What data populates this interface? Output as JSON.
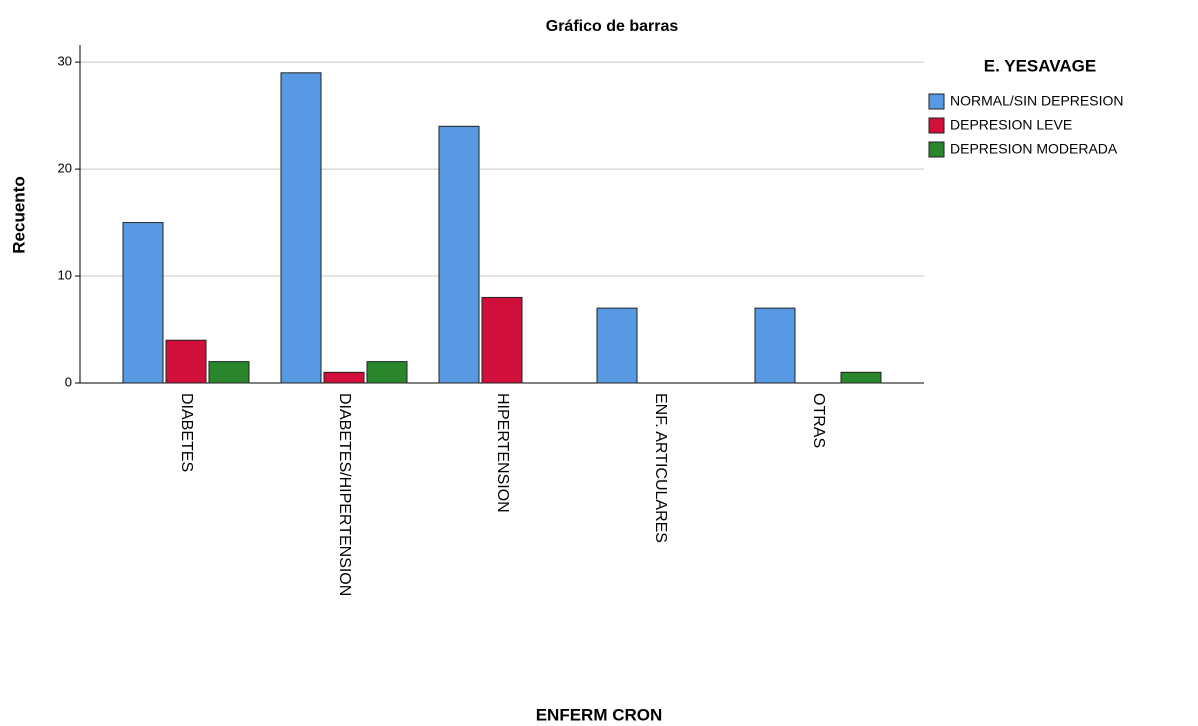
{
  "chart_data": {
    "type": "bar",
    "title": "Gráfico de barras",
    "x_label": "ENFERM CRON",
    "y_label": "Recuento",
    "legend_title": "E. YESAVAGE",
    "categories": [
      "DIABETES",
      "DIABETES/HIPERTENSION",
      "HIPERTENSION",
      "ENF. ARTICULARES",
      "OTRAS"
    ],
    "series": [
      {
        "name": "NORMAL/SIN DEPRESION",
        "color": "#5799e3",
        "values": [
          15,
          29,
          24,
          7,
          7
        ]
      },
      {
        "name": "DEPRESION LEVE",
        "color": "#d0103a",
        "values": [
          4,
          1,
          8,
          0,
          0
        ]
      },
      {
        "name": "DEPRESION MODERADA",
        "color": "#2a862a",
        "values": [
          2,
          2,
          0,
          0,
          1
        ]
      }
    ],
    "ylim": [
      0,
      31.6
    ],
    "yticks": [
      0,
      10,
      20,
      30
    ],
    "grid": true,
    "legend": "right"
  }
}
